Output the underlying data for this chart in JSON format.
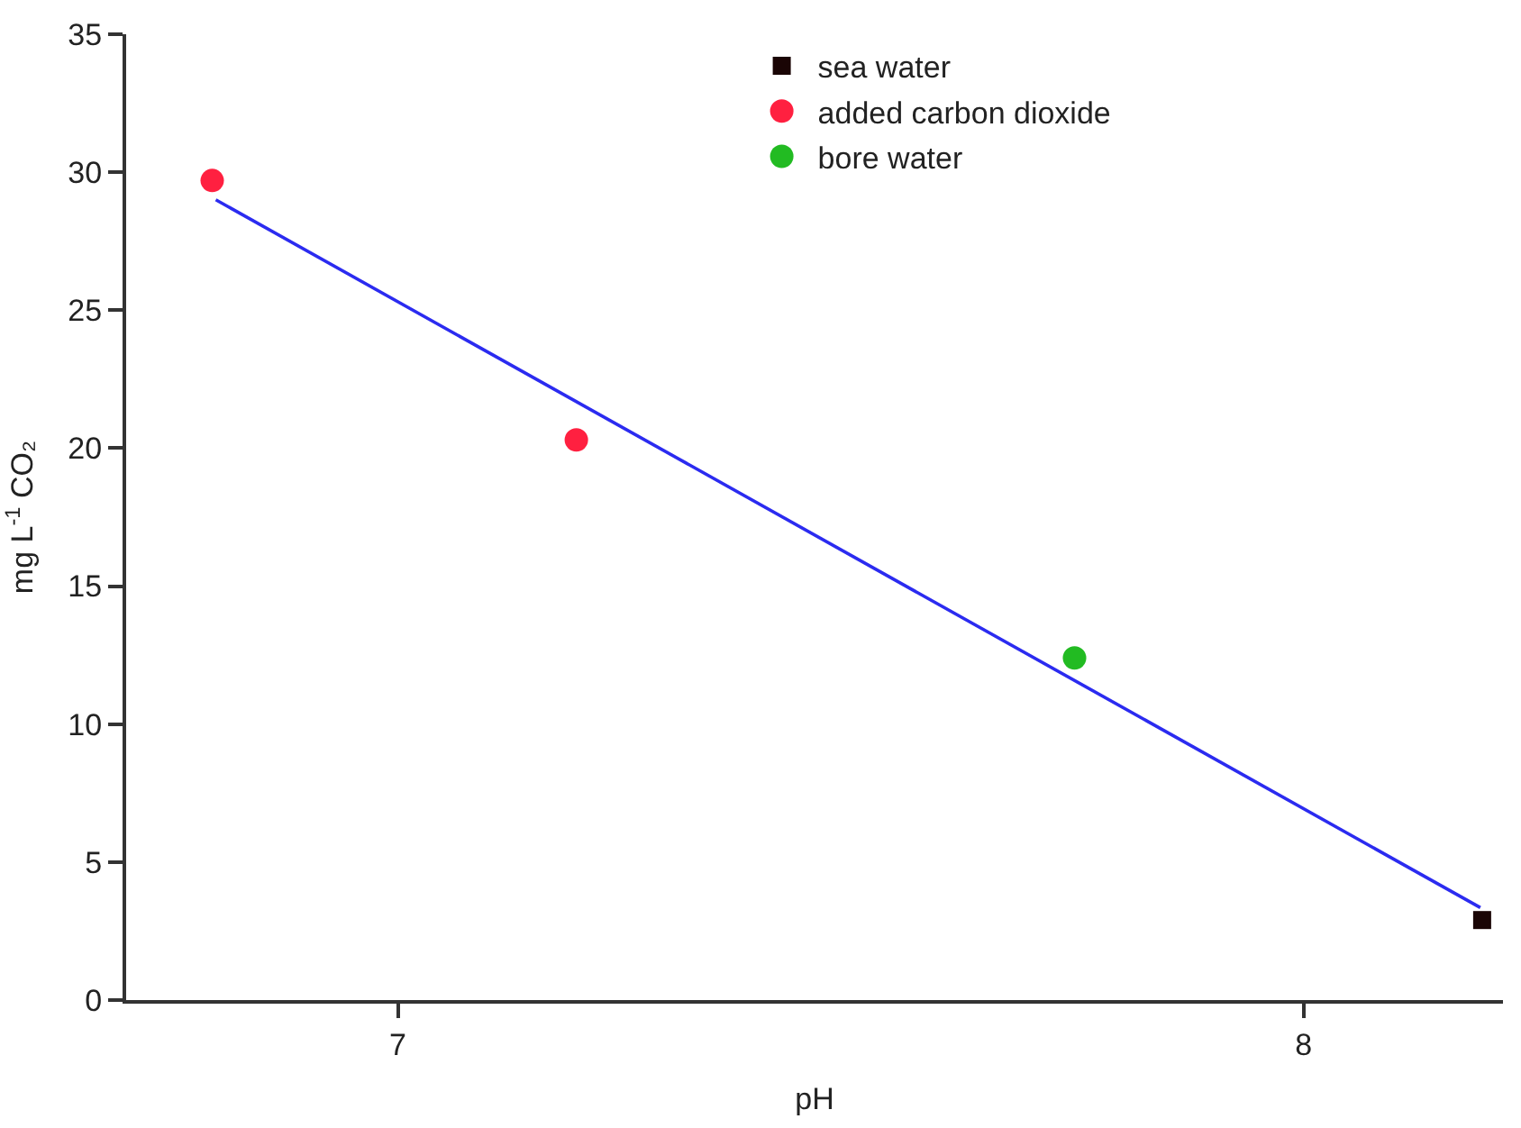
{
  "chart_data": {
    "type": "scatter",
    "xlabel": "pH",
    "ylabel": "mg L$^{-1}$ CO₂",
    "xlim": [
      6.7,
      8.22
    ],
    "xticks": [
      7,
      8
    ],
    "ylim": [
      0,
      35
    ],
    "yticks": [
      0,
      5,
      10,
      15,
      20,
      25,
      30,
      35
    ],
    "legend": "top",
    "series": [
      {
        "name": "sea water",
        "color": "#1a0505",
        "marker": "square",
        "x": [
          8.197
        ],
        "values": [
          2.9
        ]
      },
      {
        "name": "added carbon dioxide",
        "color": "#ff2040",
        "marker": "circle",
        "x": [
          6.795,
          7.197
        ],
        "values": [
          29.7,
          20.3
        ]
      },
      {
        "name": "bore water",
        "color": "#22bb22",
        "marker": "circle",
        "x": [
          7.747
        ],
        "values": [
          12.4
        ]
      },
      {
        "type": "line",
        "color": "#2b2bf0",
        "marker": "none",
        "line_style": "solid",
        "x": [
          6.799,
          8.195
        ],
        "values": [
          29.0,
          3.35
        ]
      }
    ]
  }
}
